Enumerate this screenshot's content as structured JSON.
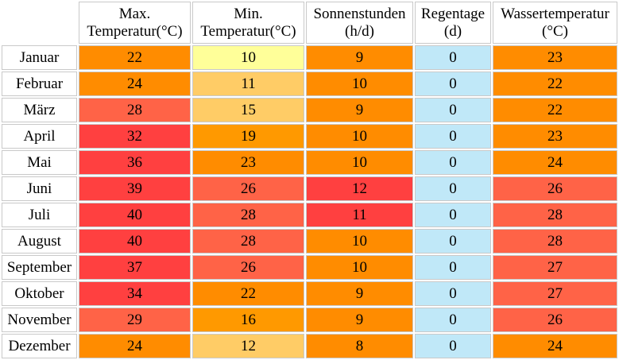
{
  "colors": {
    "light_yellow": "#ffff99",
    "pale_orange": "#ffcc66",
    "amber": "#ff9900",
    "orange": "#ff8c00",
    "salmon": "#ff6347",
    "red": "#ff4040",
    "light_blue": "#c0e8f8"
  },
  "table": {
    "headers": [
      {
        "line1": "",
        "line2": ""
      },
      {
        "line1": "Max.",
        "line2": "Temperatur(°C)"
      },
      {
        "line1": "Min.",
        "line2": "Temperatur(°C)"
      },
      {
        "line1": "Sonnenstunden",
        "line2": "(h/d)"
      },
      {
        "line1": "Regentage",
        "line2": "(d)"
      },
      {
        "line1": "Wassertemperatur",
        "line2": "(°C)"
      }
    ],
    "rows": [
      {
        "month": "Januar",
        "max": "22",
        "min": "10",
        "sun": "9",
        "rain": "0",
        "water": "23"
      },
      {
        "month": "Februar",
        "max": "24",
        "min": "11",
        "sun": "10",
        "rain": "0",
        "water": "22"
      },
      {
        "month": "März",
        "max": "28",
        "min": "15",
        "sun": "9",
        "rain": "0",
        "water": "22"
      },
      {
        "month": "April",
        "max": "32",
        "min": "19",
        "sun": "10",
        "rain": "0",
        "water": "23"
      },
      {
        "month": "Mai",
        "max": "36",
        "min": "23",
        "sun": "10",
        "rain": "0",
        "water": "24"
      },
      {
        "month": "Juni",
        "max": "39",
        "min": "26",
        "sun": "12",
        "rain": "0",
        "water": "26"
      },
      {
        "month": "Juli",
        "max": "40",
        "min": "28",
        "sun": "11",
        "rain": "0",
        "water": "28"
      },
      {
        "month": "August",
        "max": "40",
        "min": "28",
        "sun": "10",
        "rain": "0",
        "water": "28"
      },
      {
        "month": "September",
        "max": "37",
        "min": "26",
        "sun": "10",
        "rain": "0",
        "water": "27"
      },
      {
        "month": "Oktober",
        "max": "34",
        "min": "22",
        "sun": "9",
        "rain": "0",
        "water": "27"
      },
      {
        "month": "November",
        "max": "29",
        "min": "16",
        "sun": "9",
        "rain": "0",
        "water": "26"
      },
      {
        "month": "Dezember",
        "max": "24",
        "min": "12",
        "sun": "8",
        "rain": "0",
        "water": "24"
      }
    ],
    "cell_colors": [
      {
        "max": "#ff8c00",
        "min": "#ffff99",
        "sun": "#ff8c00",
        "rain": "#c0e8f8",
        "water": "#ff8c00"
      },
      {
        "max": "#ff8c00",
        "min": "#ffcc66",
        "sun": "#ff8c00",
        "rain": "#c0e8f8",
        "water": "#ff8c00"
      },
      {
        "max": "#ff6347",
        "min": "#ffcc66",
        "sun": "#ff8c00",
        "rain": "#c0e8f8",
        "water": "#ff8c00"
      },
      {
        "max": "#ff4040",
        "min": "#ff9900",
        "sun": "#ff8c00",
        "rain": "#c0e8f8",
        "water": "#ff8c00"
      },
      {
        "max": "#ff4040",
        "min": "#ff8c00",
        "sun": "#ff8c00",
        "rain": "#c0e8f8",
        "water": "#ff8c00"
      },
      {
        "max": "#ff4040",
        "min": "#ff6347",
        "sun": "#ff4040",
        "rain": "#c0e8f8",
        "water": "#ff6347"
      },
      {
        "max": "#ff4040",
        "min": "#ff6347",
        "sun": "#ff4040",
        "rain": "#c0e8f8",
        "water": "#ff6347"
      },
      {
        "max": "#ff4040",
        "min": "#ff6347",
        "sun": "#ff8c00",
        "rain": "#c0e8f8",
        "water": "#ff6347"
      },
      {
        "max": "#ff4040",
        "min": "#ff6347",
        "sun": "#ff8c00",
        "rain": "#c0e8f8",
        "water": "#ff6347"
      },
      {
        "max": "#ff4040",
        "min": "#ff8c00",
        "sun": "#ff8c00",
        "rain": "#c0e8f8",
        "water": "#ff6347"
      },
      {
        "max": "#ff6347",
        "min": "#ff9900",
        "sun": "#ff8c00",
        "rain": "#c0e8f8",
        "water": "#ff6347"
      },
      {
        "max": "#ff8c00",
        "min": "#ffcc66",
        "sun": "#ff8c00",
        "rain": "#c0e8f8",
        "water": "#ff8c00"
      }
    ]
  }
}
